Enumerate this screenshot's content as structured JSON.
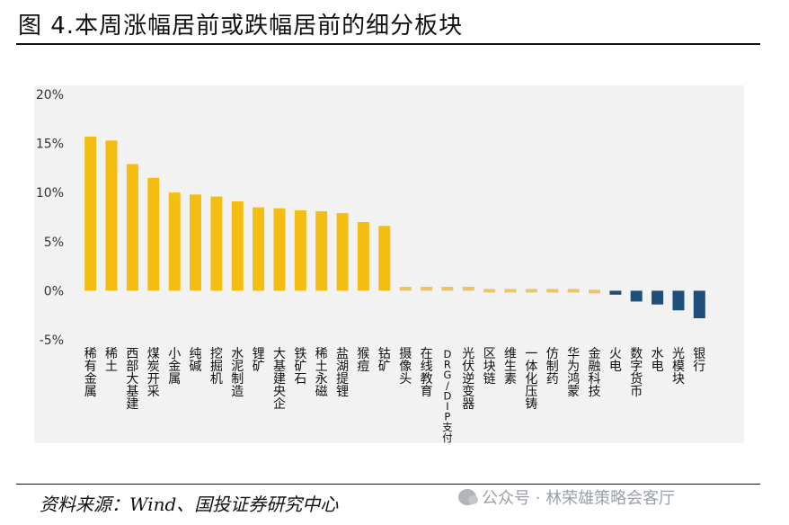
{
  "figure_title": "图 4.本周涨幅居前或跌幅居前的细分板块",
  "source_text": "资料来源：Wind、国投证券研究中心",
  "watermark_text": "公众号 · 林荣雄策略会客厅",
  "colors": {
    "positive_bar": "#f3bd12",
    "flat_bar": "#e8c56a",
    "negative_bar": "#1f4e79",
    "axis_text": "#333333"
  },
  "chart_data": {
    "type": "bar",
    "title": "",
    "xlabel": "",
    "ylabel": "",
    "ylim": [
      -0.05,
      0.2
    ],
    "yticks": [
      -0.05,
      0,
      0.05,
      0.1,
      0.15,
      0.2
    ],
    "ytick_labels": [
      "-5%",
      "0%",
      "5%",
      "10%",
      "15%",
      "20%"
    ],
    "grid": false,
    "categories": [
      "稀有金属",
      "稀土",
      "西部大基建",
      "煤炭开采",
      "小金属",
      "纯碱",
      "挖掘机",
      "水泥制造",
      "锂矿",
      "大基建央企",
      "铁矿石",
      "稀土永磁",
      "盐湖提锂",
      "猴痘",
      "钴矿",
      "摄像头",
      "在线教育",
      "DRG/DIP支付",
      "光伏逆变器",
      "区块链",
      "维生素",
      "一体化压铸",
      "仿制药",
      "华为鸿蒙",
      "金融科技",
      "火电",
      "数字货币",
      "水电",
      "光模块",
      "银行"
    ],
    "values": [
      0.157,
      0.153,
      0.129,
      0.115,
      0.1,
      0.098,
      0.096,
      0.091,
      0.085,
      0.084,
      0.082,
      0.081,
      0.079,
      0.07,
      0.066,
      0.004,
      0.004,
      0.004,
      0.004,
      0.003,
      0.003,
      0.001,
      0.001,
      0.0,
      -0.001,
      -0.004,
      -0.011,
      -0.014,
      -0.02,
      -0.028
    ]
  }
}
